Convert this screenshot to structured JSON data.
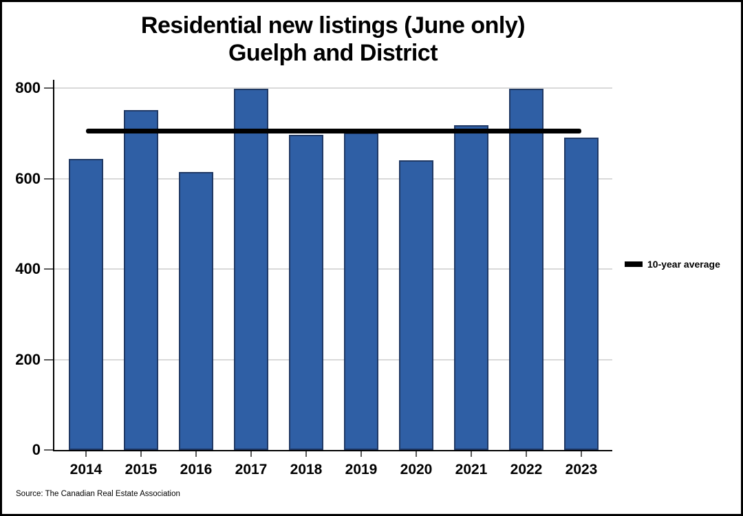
{
  "title": {
    "line1": "Residential new listings (June only)",
    "line2": "Guelph and District"
  },
  "legend": {
    "label": "10-year average"
  },
  "source": "Source: The Canadian Real Estate Association",
  "colors": {
    "bar_fill": "#2F5FA5",
    "bar_border": "#1F3864",
    "average_line": "#000000",
    "gridline": "#D9D9D9",
    "axis": "#000000",
    "tick": "#595959",
    "background": "#FFFFFF",
    "frame_border": "#000000"
  },
  "chart_data": {
    "type": "bar",
    "title": "Residential new listings (June only) — Guelph and District",
    "categories": [
      "2014",
      "2015",
      "2016",
      "2017",
      "2018",
      "2019",
      "2020",
      "2021",
      "2022",
      "2023"
    ],
    "values": [
      643,
      751,
      614,
      798,
      696,
      701,
      640,
      718,
      799,
      690
    ],
    "series_name": "Residential new listings (June)",
    "average_line": {
      "label": "10-year average",
      "value": 705
    },
    "xlabel": "",
    "ylabel": "",
    "ylim": [
      0,
      800
    ],
    "yticks": [
      0,
      200,
      400,
      600,
      800
    ],
    "grid": "horizontal",
    "legend_position": "right",
    "source": "The Canadian Real Estate Association"
  }
}
